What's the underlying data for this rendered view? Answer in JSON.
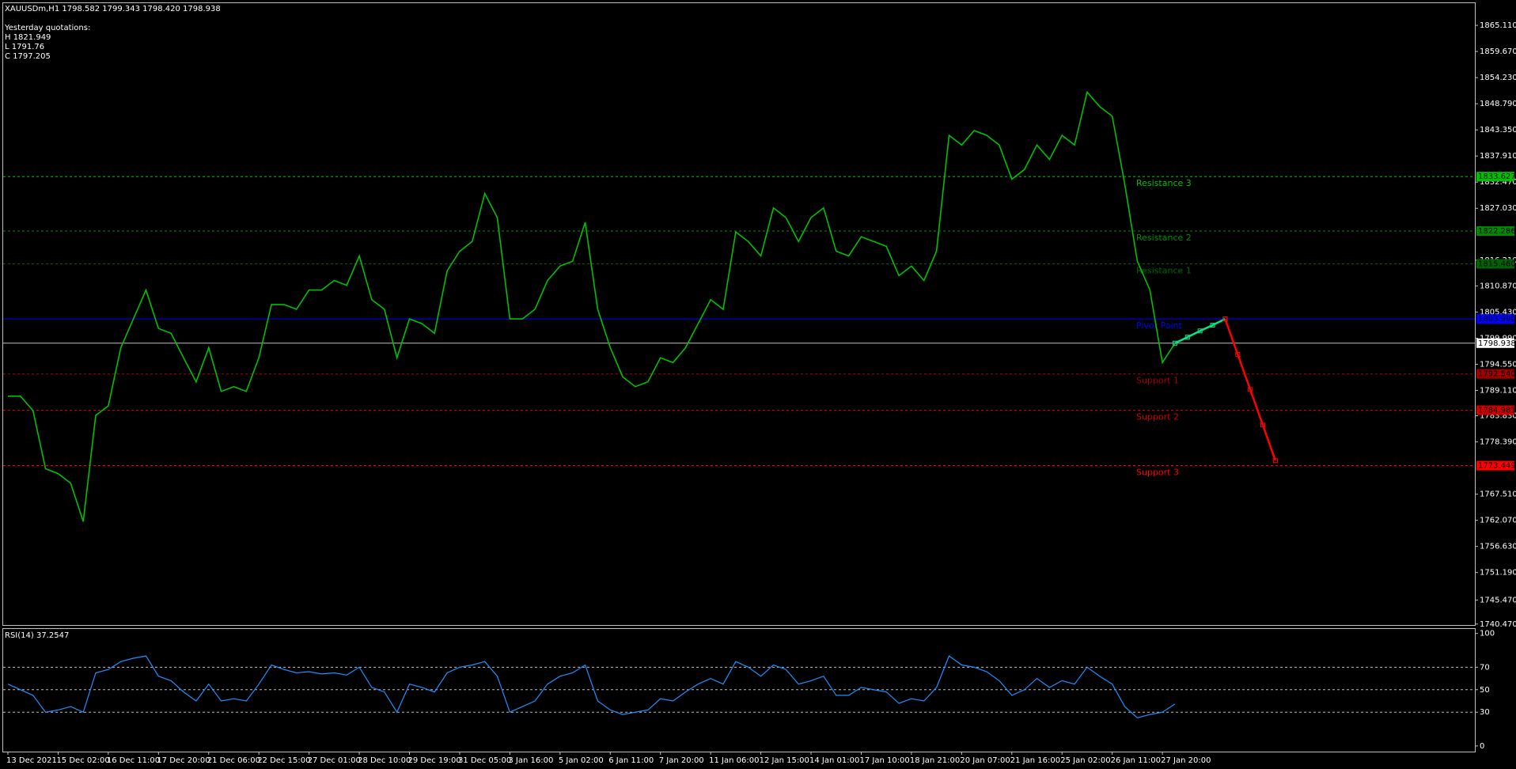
{
  "chart_data": {
    "type": "line",
    "title": "XAUUSDm,H1  1798.582 1799.343 1798.420 1798.938",
    "info": [
      "Yesterday quotations:",
      "H 1821.949",
      "L 1791.76",
      "C 1797.205"
    ],
    "categories": [
      "13 Dec 2021",
      null,
      null,
      null,
      "15 Dec 02:00",
      null,
      null,
      null,
      "16 Dec 11:00",
      null,
      null,
      null,
      "17 Dec 20:00",
      null,
      null,
      null,
      "21 Dec 06:00",
      null,
      null,
      null,
      "22 Dec 15:00",
      null,
      null,
      null,
      "27 Dec 01:00",
      null,
      null,
      null,
      "28 Dec 10:00",
      null,
      null,
      null,
      "29 Dec 19:00",
      null,
      null,
      null,
      "31 Dec 05:00",
      null,
      null,
      null,
      "3 Jan 16:00",
      null,
      null,
      null,
      "5 Jan 02:00",
      null,
      null,
      null,
      "6 Jan 11:00",
      null,
      null,
      null,
      "7 Jan 20:00",
      null,
      null,
      null,
      "11 Jan 06:00",
      null,
      null,
      null,
      "12 Jan 15:00",
      null,
      null,
      null,
      "14 Jan 01:00",
      null,
      null,
      null,
      "17 Jan 10:00",
      null,
      null,
      null,
      "18 Jan 21:00",
      null,
      null,
      null,
      "20 Jan 07:00",
      null,
      null,
      null,
      "21 Jan 16:00",
      null,
      null,
      null,
      "25 Jan 02:00",
      null,
      null,
      null,
      "26 Jan 11:00",
      null,
      null,
      null,
      "27 Jan 20:00",
      null,
      null,
      null,
      null,
      null,
      null,
      null,
      null,
      null
    ],
    "series": [
      {
        "color": "#00c000",
        "values": [
          1787.9,
          1787.9,
          1784.9,
          1772.8,
          1771.8,
          1769.8,
          1761.8,
          1783.9,
          1785.9,
          1798.0,
          1804.0,
          1810.0,
          1802.0,
          1801.0,
          1795.9,
          1790.9,
          1798.0,
          1788.9,
          1789.9,
          1788.9,
          1795.9,
          1807.0,
          1807.0,
          1806.0,
          1810.0,
          1810.0,
          1812.0,
          1811.0,
          1817.1,
          1808.0,
          1806.0,
          1795.9,
          1804.0,
          1803.0,
          1801.0,
          1814.0,
          1818.1,
          1820.1,
          1830.1,
          1825.1,
          1804.0,
          1804.0,
          1806.0,
          1812.0,
          1815.0,
          1816.0,
          1824.1,
          1806.0,
          1798.0,
          1791.9,
          1789.9,
          1790.9,
          1795.9,
          1794.9,
          1798.0,
          1803.0,
          1808.0,
          1806.0,
          1822.1,
          1820.1,
          1817.1,
          1827.1,
          1825.1,
          1820.1,
          1825.1,
          1827.1,
          1818.1,
          1817.1,
          1821.1,
          1820.1,
          1819.1,
          1813.0,
          1815.0,
          1812.0,
          1818.1,
          1842.2,
          1840.2,
          1843.2,
          1842.2,
          1840.2,
          1833.1,
          1835.1,
          1840.2,
          1837.2,
          1842.2,
          1840.2,
          1851.2,
          1848.2,
          1846.2,
          1832.1,
          1816.0,
          1810.0,
          1794.9,
          1798.938,
          null,
          null,
          null,
          null,
          null,
          null,
          null,
          null
        ]
      },
      {
        "color": "#00e68a",
        "values": [
          null,
          null,
          null,
          null,
          null,
          null,
          null,
          null,
          null,
          null,
          null,
          null,
          null,
          null,
          null,
          null,
          null,
          null,
          null,
          null,
          null,
          null,
          null,
          null,
          null,
          null,
          null,
          null,
          null,
          null,
          null,
          null,
          null,
          null,
          null,
          null,
          null,
          null,
          null,
          null,
          null,
          null,
          null,
          null,
          null,
          null,
          null,
          null,
          null,
          null,
          null,
          null,
          null,
          null,
          null,
          null,
          null,
          null,
          null,
          null,
          null,
          null,
          null,
          null,
          null,
          null,
          null,
          null,
          null,
          null,
          null,
          null,
          null,
          null,
          null,
          null,
          null,
          null,
          null,
          null,
          null,
          null,
          null,
          null,
          null,
          null,
          null,
          null,
          null,
          null,
          null,
          null,
          null,
          1798.938,
          1800.2,
          1801.5,
          1802.7,
          1803.99,
          null,
          null,
          null,
          null
        ]
      },
      {
        "color": "#ff0000",
        "values": [
          null,
          null,
          null,
          null,
          null,
          null,
          null,
          null,
          null,
          null,
          null,
          null,
          null,
          null,
          null,
          null,
          null,
          null,
          null,
          null,
          null,
          null,
          null,
          null,
          null,
          null,
          null,
          null,
          null,
          null,
          null,
          null,
          null,
          null,
          null,
          null,
          null,
          null,
          null,
          null,
          null,
          null,
          null,
          null,
          null,
          null,
          null,
          null,
          null,
          null,
          null,
          null,
          null,
          null,
          null,
          null,
          null,
          null,
          null,
          null,
          null,
          null,
          null,
          null,
          null,
          null,
          null,
          null,
          null,
          null,
          null,
          null,
          null,
          null,
          null,
          null,
          null,
          null,
          null,
          null,
          null,
          null,
          null,
          null,
          null,
          null,
          null,
          null,
          null,
          null,
          null,
          null,
          null,
          null,
          null,
          null,
          null,
          1803.99,
          1796.6,
          1789.3,
          1781.9,
          1774.5
        ]
      }
    ],
    "ylim": [
      1740.27,
      1869.73
    ],
    "yticks": [
      {
        "value": 1865.11,
        "label": "1865.110"
      },
      {
        "value": 1859.67,
        "label": "1859.670"
      },
      {
        "value": 1854.23,
        "label": "1854.230"
      },
      {
        "value": 1848.79,
        "label": "1848.790"
      },
      {
        "value": 1843.35,
        "label": "1843.350"
      },
      {
        "value": 1837.91,
        "label": "1837.910"
      },
      {
        "value": 1832.47,
        "label": "1832.470"
      },
      {
        "value": 1827.03,
        "label": "1827.030"
      },
      {
        "value": 1816.21,
        "label": "1816.210"
      },
      {
        "value": 1810.87,
        "label": "1810.870"
      },
      {
        "value": 1805.43,
        "label": "1805.430"
      },
      {
        "value": 1799.99,
        "label": "1799.990"
      },
      {
        "value": 1794.55,
        "label": "1794.550"
      },
      {
        "value": 1789.11,
        "label": "1789.110"
      },
      {
        "value": 1783.83,
        "label": "1783.830"
      },
      {
        "value": 1778.39,
        "label": "1778.390"
      },
      {
        "value": 1767.51,
        "label": "1767.510"
      },
      {
        "value": 1762.07,
        "label": "1762.070"
      },
      {
        "value": 1756.63,
        "label": "1756.630"
      },
      {
        "value": 1751.19,
        "label": "1751.190"
      },
      {
        "value": 1745.47,
        "label": "1745.470"
      },
      {
        "value": 1740.47,
        "label": "1740.470"
      }
    ],
    "levels": [
      {
        "name": "Resistance 3",
        "value": 1833.627,
        "label": "1833.627",
        "color": "#00c000",
        "dashed": true
      },
      {
        "name": "Resistance 2",
        "value": 1822.286,
        "label": "1822.286",
        "color": "#008a00",
        "dashed": true
      },
      {
        "name": "Resistance 1",
        "value": 1815.46,
        "label": "1815.460",
        "color": "#006400",
        "dashed": true
      },
      {
        "name": "Pivot Point",
        "value": 1803.99,
        "label": "1803.990",
        "color": "#0000ff",
        "dashed": false
      },
      {
        "name": "Support 1",
        "value": 1792.54,
        "label": "1792.540",
        "color": "#a00000",
        "dashed": true
      },
      {
        "name": "Support 2",
        "value": 1784.981,
        "label": "1784.981",
        "color": "#d00000",
        "dashed": true
      },
      {
        "name": "Support 3",
        "value": 1773.449,
        "label": "1773.449",
        "color": "#ff0000",
        "dashed": true
      }
    ],
    "current": {
      "value": 1798.938,
      "label": "1798.938",
      "color": "#c0c0c0"
    },
    "rsi": {
      "label": "RSI(14) 37.2547",
      "color": "#1e90ff",
      "ylim": [
        -5,
        104
      ],
      "yticks": [
        100,
        70,
        50,
        30,
        0
      ],
      "levels": [
        70,
        50,
        30
      ],
      "values": [
        55,
        50,
        45,
        30,
        32,
        35,
        30,
        65,
        68,
        75,
        78,
        80,
        62,
        58,
        48,
        40,
        55,
        40,
        42,
        40,
        55,
        72,
        68,
        65,
        66,
        64,
        65,
        63,
        70,
        52,
        48,
        30,
        55,
        52,
        48,
        65,
        70,
        72,
        75,
        62,
        30,
        35,
        40,
        55,
        62,
        65,
        72,
        40,
        32,
        28,
        30,
        32,
        42,
        40,
        48,
        55,
        60,
        55,
        75,
        70,
        62,
        72,
        68,
        55,
        58,
        62,
        45,
        45,
        52,
        50,
        48,
        38,
        42,
        40,
        52,
        80,
        72,
        70,
        66,
        58,
        45,
        50,
        60,
        52,
        58,
        55,
        70,
        62,
        55,
        35,
        25,
        28,
        30,
        37.25,
        null,
        null,
        null,
        null,
        null,
        null,
        null,
        null
      ]
    }
  }
}
